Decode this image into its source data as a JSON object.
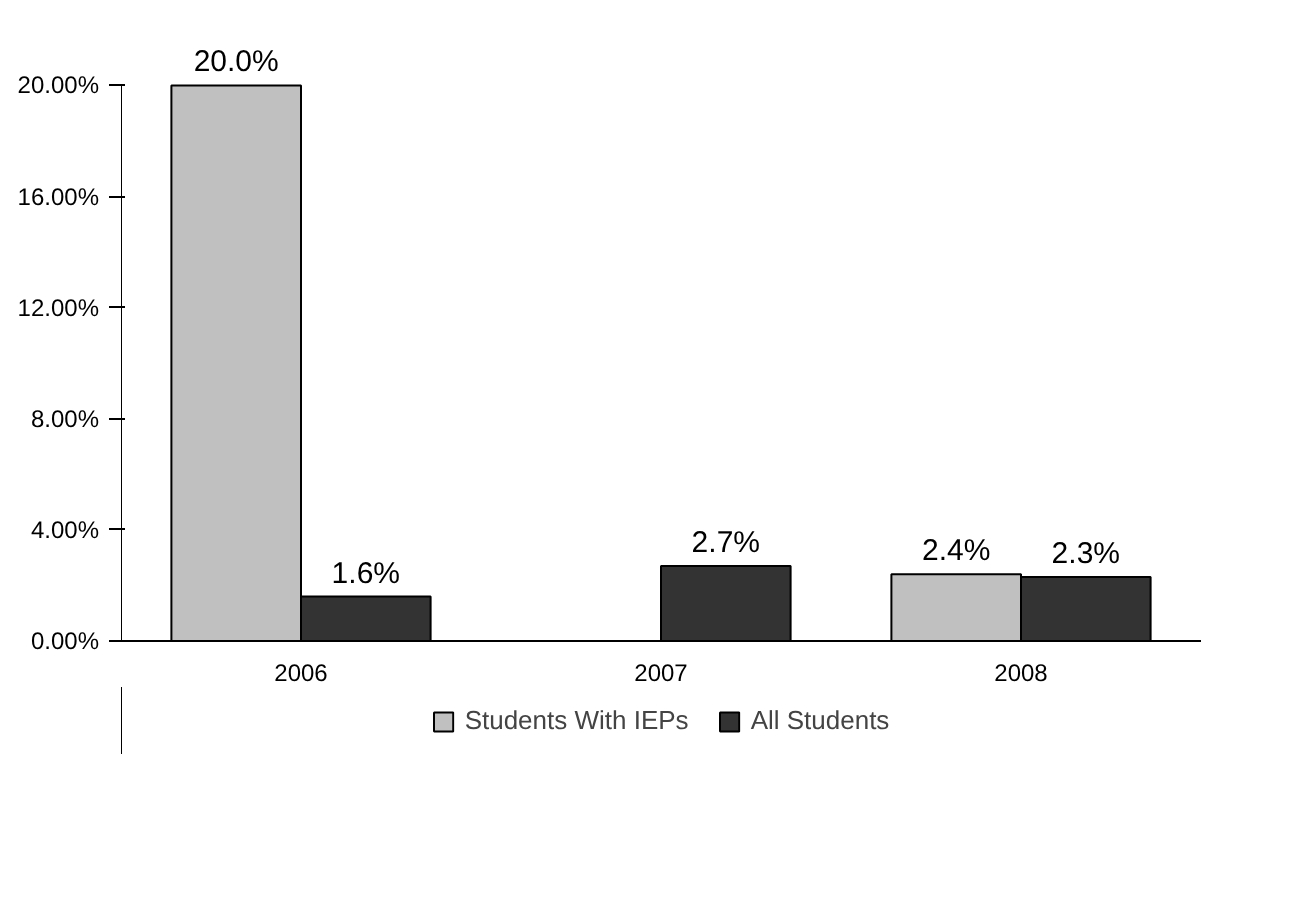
{
  "chart_data": {
    "type": "bar",
    "categories": [
      "2006",
      "2007",
      "2008"
    ],
    "series": [
      {
        "name": "Students With IEPs",
        "color": "#c0c0c0",
        "values": [
          20.0,
          null,
          2.4
        ],
        "value_labels": [
          "20.0%",
          null,
          "2.4%"
        ]
      },
      {
        "name": "All Students",
        "color": "#333333",
        "values": [
          1.6,
          2.7,
          2.3
        ],
        "value_labels": [
          "1.6%",
          "2.7%",
          "2.3%"
        ]
      }
    ],
    "ylim": [
      0,
      20
    ],
    "yticks": [
      {
        "value": 0,
        "label": "0.00%"
      },
      {
        "value": 4,
        "label": "4.00%"
      },
      {
        "value": 8,
        "label": "8.00%"
      },
      {
        "value": 12,
        "label": "12.00%"
      },
      {
        "value": 16,
        "label": "16.00%"
      },
      {
        "value": 20,
        "label": "20.00%"
      }
    ],
    "grid": false,
    "legend": "bottom"
  }
}
